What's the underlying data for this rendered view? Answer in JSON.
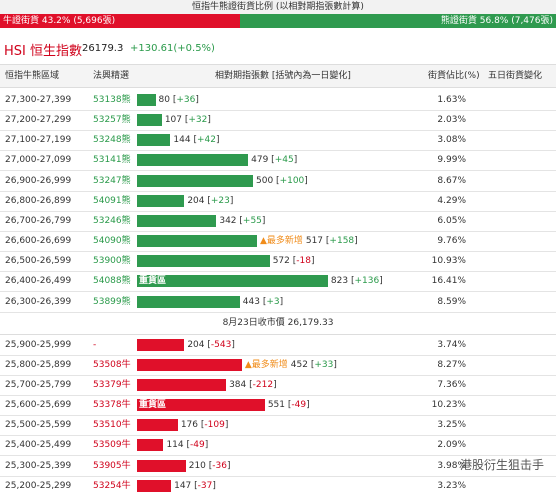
{
  "header": {
    "title": "恒指牛熊證街貨比例 (以相對期指張數計算)",
    "bull_label": "牛證街貨 43.2% (5,696張)",
    "bear_label": "熊證街貨 56.8% (7,476張)",
    "bull_share": 43.2,
    "bear_share": 56.8
  },
  "index": {
    "name": "HSI 恒生指數",
    "value": "26179.3",
    "change": "+130.61(+0.5%)"
  },
  "table": {
    "columns": [
      "恒指牛熊區域",
      "法興精選",
      "相對期指張數 [括號內為一日變化]",
      "街貨佔比(%)",
      "五日街貨變化"
    ],
    "bear_rows": [
      {
        "range": "27,300-27,399",
        "code": "53138熊",
        "count": 80,
        "change": "+36",
        "pct": "1.63%"
      },
      {
        "range": "27,200-27,299",
        "code": "53257熊",
        "count": 107,
        "change": "+32",
        "pct": "2.03%"
      },
      {
        "range": "27,100-27,199",
        "code": "53248熊",
        "count": 144,
        "change": "+42",
        "pct": "3.08%"
      },
      {
        "range": "27,000-27,099",
        "code": "53141熊",
        "count": 479,
        "change": "+45",
        "pct": "9.99%"
      },
      {
        "range": "26,900-26,999",
        "code": "53247熊",
        "count": 500,
        "change": "+100",
        "pct": "8.67%"
      },
      {
        "range": "26,800-26,899",
        "code": "54091熊",
        "count": 204,
        "change": "+23",
        "pct": "4.29%"
      },
      {
        "range": "26,700-26,799",
        "code": "53246熊",
        "count": 342,
        "change": "+55",
        "pct": "6.05%"
      },
      {
        "range": "26,600-26,699",
        "code": "54090熊",
        "count": 517,
        "change": "+158",
        "pct": "9.76%",
        "tag": "▲最多新增"
      },
      {
        "range": "26,500-26,599",
        "code": "53900熊",
        "count": 572,
        "change": "-18",
        "pct": "10.93%"
      },
      {
        "range": "26,400-26,499",
        "code": "54088熊",
        "count": 823,
        "change": "+136",
        "pct": "16.41%",
        "heavy": "重貨區"
      },
      {
        "range": "26,300-26,399",
        "code": "53899熊",
        "count": 443,
        "change": "+3",
        "pct": "8.59%"
      }
    ],
    "separator": "8月23日收市價 26,179.33",
    "bull_rows": [
      {
        "range": "25,900-25,999",
        "code": "-",
        "count": 204,
        "change": "-543",
        "pct": "3.74%"
      },
      {
        "range": "25,800-25,899",
        "code": "53508牛",
        "count": 452,
        "change": "+33",
        "pct": "8.27%",
        "tag": "▲最多新增"
      },
      {
        "range": "25,700-25,799",
        "code": "53379牛",
        "count": 384,
        "change": "-212",
        "pct": "7.36%"
      },
      {
        "range": "25,600-25,699",
        "code": "53378牛",
        "count": 551,
        "change": "-49",
        "pct": "10.23%",
        "heavy": "重貨區"
      },
      {
        "range": "25,500-25,599",
        "code": "53510牛",
        "count": 176,
        "change": "-109",
        "pct": "3.25%"
      },
      {
        "range": "25,400-25,499",
        "code": "53509牛",
        "count": 114,
        "change": "-49",
        "pct": "2.09%"
      },
      {
        "range": "25,300-25,399",
        "code": "53905牛",
        "count": 210,
        "change": "-36",
        "pct": "3.98%"
      },
      {
        "range": "25,200-25,299",
        "code": "53254牛",
        "count": 147,
        "change": "-37",
        "pct": "3.23%"
      }
    ]
  },
  "watermark": "港股衍生狙击手"
}
